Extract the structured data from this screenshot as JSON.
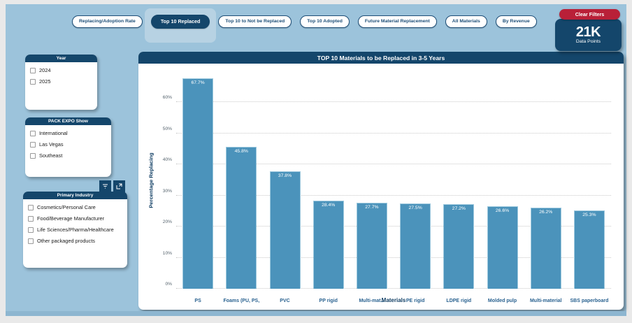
{
  "colors": {
    "background_blue": "#9cc3db",
    "navy": "#14466b",
    "red": "#b92038",
    "bar_fill": "#4b93bb",
    "selected_tab_highlight": "#b7d2e3"
  },
  "tabs": [
    {
      "label": "Replacing/Adoption Rate",
      "selected": false
    },
    {
      "label": "Top 10 Replaced",
      "selected": true
    },
    {
      "label": "Top 10 to Not be Replaced",
      "selected": false
    },
    {
      "label": "Top 10 Adopted",
      "selected": false
    },
    {
      "label": "Future Material Replacement",
      "selected": false
    },
    {
      "label": "All Materials",
      "selected": false
    },
    {
      "label": "By Revenue",
      "selected": false
    }
  ],
  "header": {
    "clear_filters_label": "Clear Filters",
    "data_points_value": "21K",
    "data_points_label": "Data Points"
  },
  "filters": [
    {
      "title": "Year",
      "options": [
        "2024",
        "2025"
      ]
    },
    {
      "title": "PACK EXPO Show",
      "options": [
        "International",
        "Las Vegas",
        "Southeast"
      ]
    },
    {
      "title": "Primary Industry",
      "options": [
        "Cosmetics/Personal Care",
        "Food/Beverage Manufacturer",
        "Life Sciences/Pharma/Healthcare",
        "Other packaged products"
      ]
    }
  ],
  "visual_header_icons": [
    "filter-icon",
    "focus-mode-icon"
  ],
  "chart_data": {
    "type": "bar",
    "title": "TOP 10 Materials to be Replaced in 3-5 Years",
    "categories": [
      "PS",
      "Foams (PU, PS,",
      "PVC",
      "PP rigid",
      "Multi-mat...",
      "PE rigid",
      "LDPE rigid",
      "Molded pulp",
      "Multi-material",
      "SBS paperboard"
    ],
    "values": [
      67.7,
      45.8,
      37.8,
      28.4,
      27.7,
      27.5,
      27.2,
      26.6,
      26.2,
      25.3
    ],
    "data_labels": [
      "67.7%",
      "45.8%",
      "37.8%",
      "28.4%",
      "27.7%",
      "27.5%",
      "27.2%",
      "26.6%",
      "26.2%",
      "25.3%"
    ],
    "xlabel": "Materials",
    "ylabel": "Percentage Replacing",
    "ylim": [
      0,
      70
    ],
    "ytick_step": 10,
    "yticks": [
      "0%",
      "10%",
      "20%",
      "30%",
      "40%",
      "50%",
      "60%"
    ],
    "grid": "dotted-horizontal",
    "legend": "none"
  }
}
